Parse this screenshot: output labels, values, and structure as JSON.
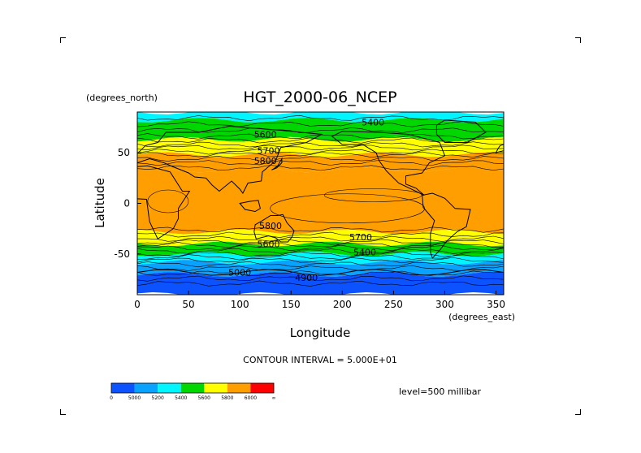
{
  "chart_data": {
    "type": "heatmap",
    "title": "HGT_2000-06_NCEP",
    "xlabel": "Longitude",
    "ylabel": "Latitude",
    "x_units": "(degrees_east)",
    "y_units": "(degrees_north)",
    "xlim": [
      0,
      357.5
    ],
    "ylim": [
      -90,
      90
    ],
    "x_ticks": [
      0,
      50,
      100,
      150,
      200,
      250,
      300,
      350
    ],
    "y_ticks": [
      -50,
      0,
      50
    ],
    "contour_interval_text": "CONTOUR INTERVAL = 5.000E+01",
    "level_text": "level=500 millibar",
    "contour_labels": [
      {
        "text": "5400",
        "lon": 230,
        "lat": 80
      },
      {
        "text": "5600",
        "lon": 125,
        "lat": 68
      },
      {
        "text": "5700",
        "lon": 128,
        "lat": 52
      },
      {
        "text": "5800",
        "lon": 125,
        "lat": 42
      },
      {
        "text": "5800",
        "lon": 130,
        "lat": -22
      },
      {
        "text": "5700",
        "lon": 218,
        "lat": -33
      },
      {
        "text": "5600",
        "lon": 128,
        "lat": -40
      },
      {
        "text": "5400",
        "lon": 222,
        "lat": -48
      },
      {
        "text": "5000",
        "lon": 100,
        "lat": -68
      },
      {
        "text": "4900",
        "lon": 165,
        "lat": -73
      }
    ],
    "bands_by_latitude": [
      {
        "lat_from": 90,
        "lat_to": 82,
        "class": "5200-5400"
      },
      {
        "lat_from": 82,
        "lat_to": 63,
        "class": "5400-5600"
      },
      {
        "lat_from": 63,
        "lat_to": 48,
        "class": "5600-5800"
      },
      {
        "lat_from": 48,
        "lat_to": 33,
        "class": "5800-6000"
      },
      {
        "lat_from": 33,
        "lat_to": -28,
        "class": "5800-6000"
      },
      {
        "lat_from": -28,
        "lat_to": -40,
        "class": "5600-5800"
      },
      {
        "lat_from": -40,
        "lat_to": -50,
        "class": "5400-5600"
      },
      {
        "lat_from": -50,
        "lat_to": -58,
        "class": "5200-5400"
      },
      {
        "lat_from": -58,
        "lat_to": -70,
        "class": "5000-5200"
      },
      {
        "lat_from": -70,
        "lat_to": -90,
        "class": "0-5000"
      }
    ],
    "colorbar": {
      "colors": [
        "#0c52ff",
        "#0aa2ff",
        "#00f5ff",
        "#00d700",
        "#ffff00",
        "#ff9e00",
        "#ff0000"
      ],
      "labels": [
        "0",
        "5000",
        "5200",
        "5400",
        "5600",
        "5800",
        "6000",
        "∞"
      ]
    },
    "colors": {
      "band_0_5000": "#0c52ff",
      "band_5000_5200": "#0aa2ff",
      "band_5200_5400": "#00f5ff",
      "band_5400_5600": "#00d700",
      "band_5600_5800": "#ffff00",
      "band_5800_6000": "#ff9e00",
      "band_6000_inf": "#ff0000"
    }
  }
}
